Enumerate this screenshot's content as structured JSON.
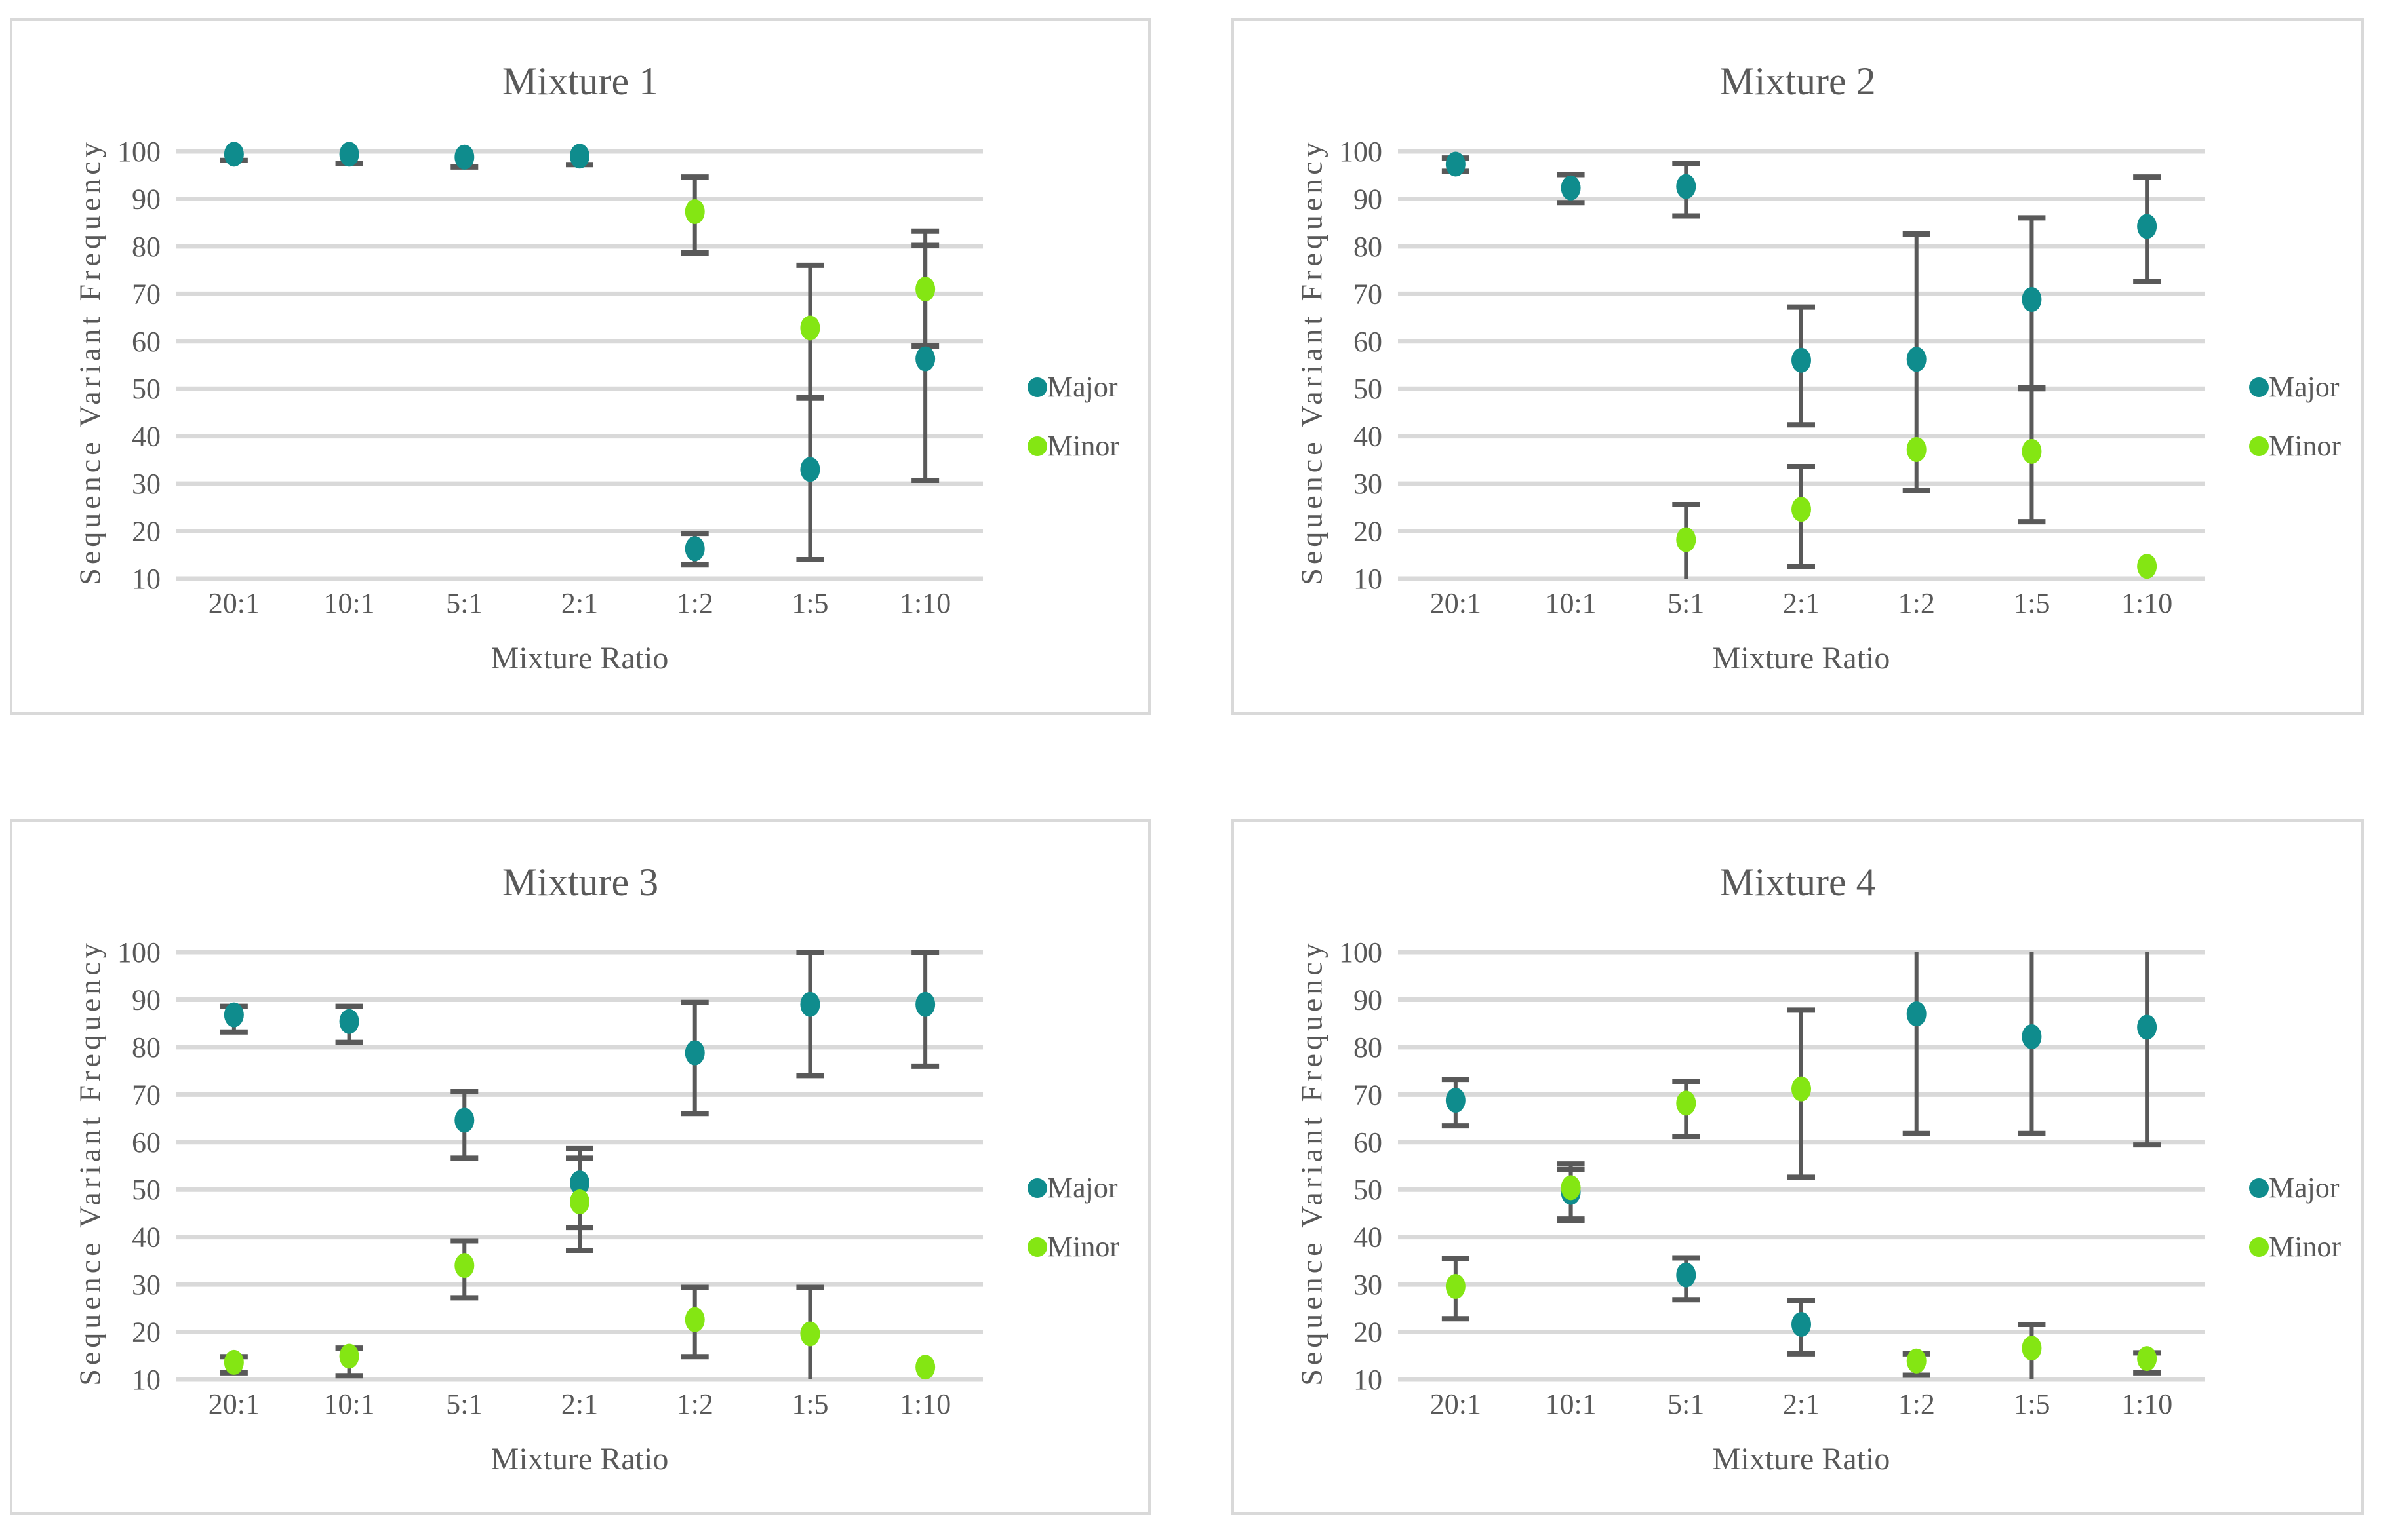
{
  "page": {
    "background": "#ffffff"
  },
  "colors": {
    "major": "#0F8C8D",
    "minor": "#84E613",
    "text": "#595959",
    "gridline": "#D9D9D9",
    "error_bar": "#595959",
    "panel_border": "#D9D9D9"
  },
  "legend": {
    "position": "right",
    "items": [
      "Major",
      "Minor"
    ]
  },
  "chart_data": [
    {
      "type": "scatter",
      "title": "Mixture 1",
      "xlabel": "Mixture Ratio",
      "ylabel": "Sequence Variant Frequency",
      "categories": [
        "20:1",
        "10:1",
        "5:1",
        "2:1",
        "1:2",
        "1:5",
        "1:10"
      ],
      "y_ticks": [
        10,
        20,
        30,
        40,
        50,
        60,
        70,
        80,
        90,
        100
      ],
      "ylim": [
        10,
        100
      ],
      "grid": true,
      "legend_position": "right",
      "series": [
        {
          "name": "Major",
          "color_key": "major",
          "points": [
            {
              "y": 99.4,
              "lo": 98.1,
              "hi": 100.7
            },
            {
              "y": 99.4,
              "lo": 97.4,
              "hi": 101.0
            },
            {
              "y": 98.8,
              "lo": 96.7,
              "hi": 100.9
            },
            {
              "y": 99.0,
              "lo": 97.2,
              "hi": 100.8
            },
            {
              "y": 16.3,
              "lo": 13.0,
              "hi": 19.5
            },
            {
              "y": 33.0,
              "lo": 14.0,
              "hi": 48.0
            },
            {
              "y": 56.3,
              "lo": 30.7,
              "hi": 80.2
            }
          ]
        },
        {
          "name": "Minor",
          "color_key": "minor",
          "points": [
            null,
            null,
            null,
            null,
            {
              "y": 87.3,
              "lo": 78.6,
              "hi": 94.6
            },
            {
              "y": 62.8,
              "lo": 48.2,
              "hi": 76.0
            },
            {
              "y": 71.0,
              "lo": 59.0,
              "hi": 83.2
            }
          ]
        }
      ]
    },
    {
      "type": "scatter",
      "title": "Mixture 2",
      "xlabel": "Mixture Ratio",
      "ylabel": "Sequence Variant Frequency",
      "categories": [
        "20:1",
        "10:1",
        "5:1",
        "2:1",
        "1:2",
        "1:5",
        "1:10"
      ],
      "y_ticks": [
        10,
        20,
        30,
        40,
        50,
        60,
        70,
        80,
        90,
        100
      ],
      "ylim": [
        10,
        100
      ],
      "grid": true,
      "legend_position": "right",
      "series": [
        {
          "name": "Major",
          "color_key": "major",
          "points": [
            {
              "y": 97.3,
              "lo": 95.8,
              "hi": 98.6
            },
            {
              "y": 92.3,
              "lo": 89.2,
              "hi": 95.1
            },
            {
              "y": 92.6,
              "lo": 86.4,
              "hi": 97.4
            },
            {
              "y": 56.0,
              "lo": 42.4,
              "hi": 67.2
            },
            {
              "y": 56.2,
              "lo": 28.5,
              "hi": 82.6
            },
            {
              "y": 68.8,
              "lo": 50.0,
              "hi": 86.0
            },
            {
              "y": 84.2,
              "lo": 72.6,
              "hi": 94.6
            }
          ]
        },
        {
          "name": "Minor",
          "color_key": "minor",
          "points": [
            null,
            null,
            {
              "y": 18.2,
              "lo": 9.8,
              "hi": 25.6
            },
            {
              "y": 24.6,
              "lo": 12.6,
              "hi": 33.6
            },
            {
              "y": 37.2
            },
            {
              "y": 36.8,
              "lo": 22.0,
              "hi": 50.2
            },
            {
              "y": 12.6
            }
          ]
        }
      ]
    },
    {
      "type": "scatter",
      "title": "Mixture 3",
      "xlabel": "Mixture Ratio",
      "ylabel": "Sequence Variant Frequency",
      "categories": [
        "20:1",
        "10:1",
        "5:1",
        "2:1",
        "1:2",
        "1:5",
        "1:10"
      ],
      "y_ticks": [
        10,
        20,
        30,
        40,
        50,
        60,
        70,
        80,
        90,
        100
      ],
      "ylim": [
        10,
        100
      ],
      "grid": true,
      "legend_position": "right",
      "series": [
        {
          "name": "Major",
          "color_key": "major",
          "points": [
            {
              "y": 86.8,
              "lo": 83.2,
              "hi": 88.6
            },
            {
              "y": 85.4,
              "lo": 81.0,
              "hi": 88.6
            },
            {
              "y": 64.6,
              "lo": 56.6,
              "hi": 70.6
            },
            {
              "y": 51.4,
              "lo": 42.0,
              "hi": 58.6
            },
            {
              "y": 78.8,
              "lo": 66.0,
              "hi": 89.4
            },
            {
              "y": 89.0,
              "lo": 74.0,
              "hi": 100.0
            },
            {
              "y": 89.0,
              "lo": 76.0,
              "hi": 100.0
            }
          ]
        },
        {
          "name": "Minor",
          "color_key": "minor",
          "points": [
            {
              "y": 13.6,
              "lo": 11.4,
              "hi": 14.8
            },
            {
              "y": 14.9,
              "lo": 10.8,
              "hi": 16.6
            },
            {
              "y": 34.0,
              "lo": 27.2,
              "hi": 39.2
            },
            {
              "y": 47.4,
              "lo": 37.2,
              "hi": 56.6
            },
            {
              "y": 22.6,
              "lo": 14.8,
              "hi": 29.4
            },
            {
              "y": 19.6,
              "lo": 9.8,
              "hi": 29.4
            },
            {
              "y": 12.6
            }
          ]
        }
      ]
    },
    {
      "type": "scatter",
      "title": "Mixture 4",
      "xlabel": "Mixture Ratio",
      "ylabel": "Sequence Variant Frequency",
      "categories": [
        "20:1",
        "10:1",
        "5:1",
        "2:1",
        "1:2",
        "1:5",
        "1:10"
      ],
      "y_ticks": [
        10,
        20,
        30,
        40,
        50,
        60,
        70,
        80,
        90,
        100
      ],
      "ylim": [
        10,
        100
      ],
      "grid": true,
      "legend_position": "right",
      "series": [
        {
          "name": "Major",
          "color_key": "major",
          "points": [
            {
              "y": 68.8,
              "lo": 63.4,
              "hi": 73.2
            },
            {
              "y": 49.4,
              "lo": 43.4,
              "hi": 54.2
            },
            {
              "y": 32.0,
              "lo": 26.8,
              "hi": 35.6
            },
            {
              "y": 21.6,
              "lo": 15.4,
              "hi": 26.6
            },
            {
              "y": 87.0,
              "lo": 61.8,
              "hi": 112.0
            },
            {
              "y": 82.2,
              "lo": 61.8,
              "hi": 104.0
            },
            {
              "y": 84.2,
              "lo": 59.4,
              "hi": 109.0
            }
          ]
        },
        {
          "name": "Minor",
          "color_key": "minor",
          "points": [
            {
              "y": 29.6,
              "lo": 22.8,
              "hi": 35.4
            },
            {
              "y": 50.4,
              "lo": 43.8,
              "hi": 55.4
            },
            {
              "y": 68.2,
              "lo": 61.2,
              "hi": 72.8
            },
            {
              "y": 71.2,
              "lo": 52.6,
              "hi": 87.8
            },
            {
              "y": 13.9,
              "lo": 10.9,
              "hi": 15.4
            },
            {
              "y": 16.6,
              "lo": 9.8,
              "hi": 21.6
            },
            {
              "y": 14.4,
              "lo": 11.4,
              "hi": 15.6
            }
          ]
        }
      ]
    }
  ]
}
